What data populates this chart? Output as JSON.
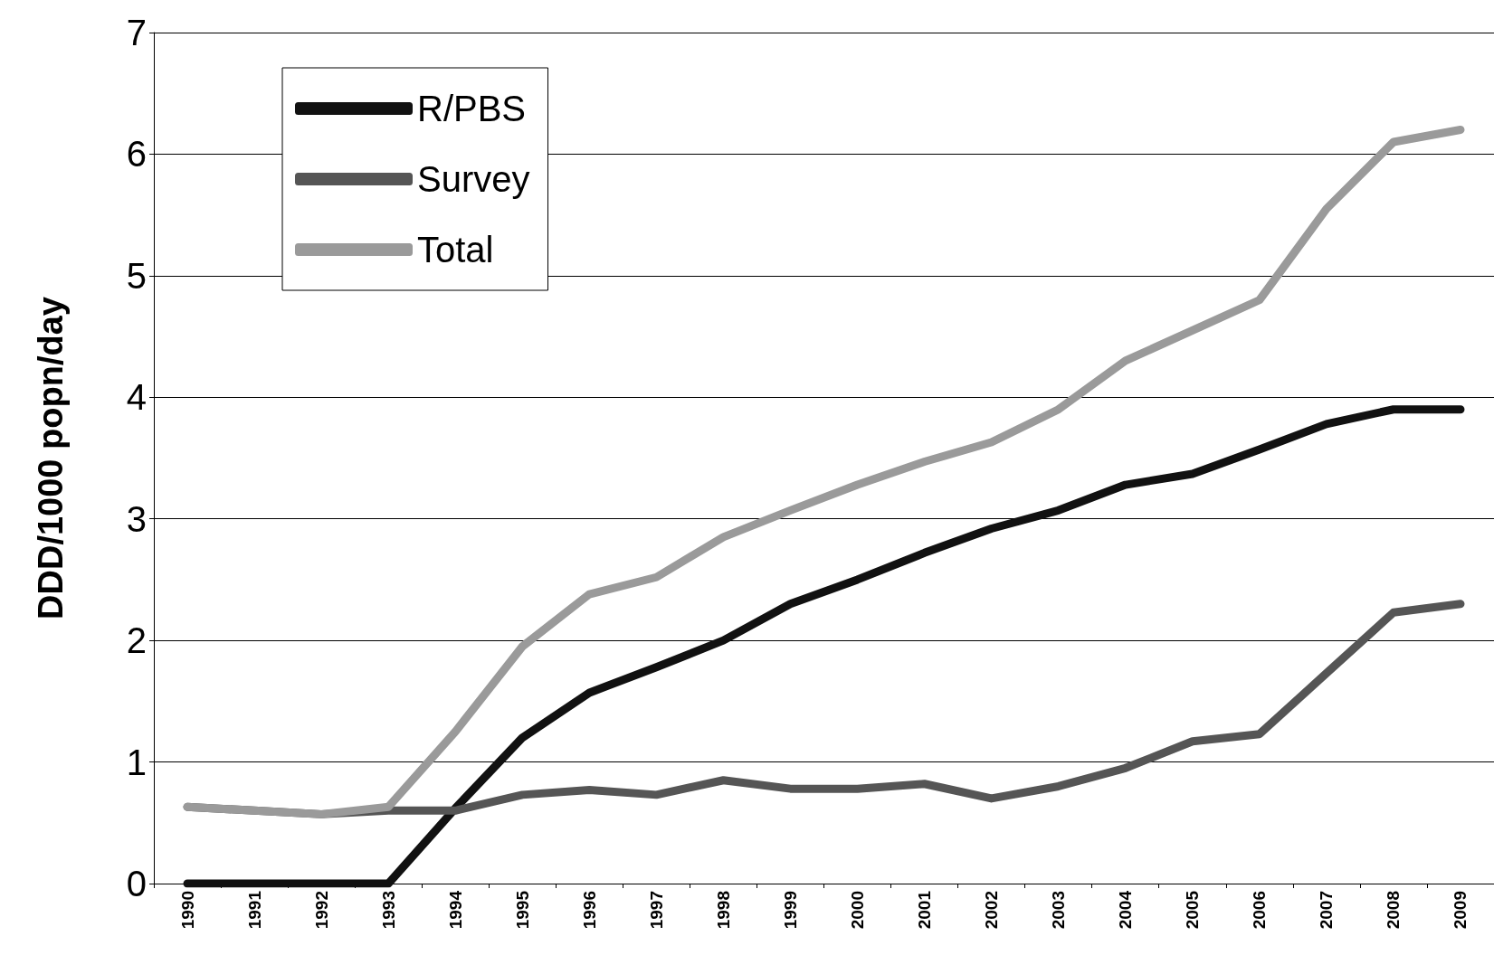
{
  "chart_data": {
    "type": "line",
    "ylabel": "DDD/1000 popn/day",
    "categories": [
      "1990",
      "1991",
      "1992",
      "1993",
      "1994",
      "1995",
      "1996",
      "1997",
      "1998",
      "1999",
      "2000",
      "2001",
      "2002",
      "2003",
      "2004",
      "2005",
      "2006",
      "2007",
      "2008",
      "2009"
    ],
    "series": [
      {
        "name": "R/PBS",
        "color": "#111111",
        "values": [
          0,
          0,
          0,
          0,
          0.62,
          1.2,
          1.57,
          1.78,
          2.0,
          2.3,
          2.5,
          2.72,
          2.92,
          3.07,
          3.28,
          3.37,
          3.57,
          3.78,
          3.9,
          3.9
        ]
      },
      {
        "name": "Survey",
        "color": "#555555",
        "values": [
          0.63,
          0.6,
          0.57,
          0.6,
          0.6,
          0.73,
          0.77,
          0.73,
          0.85,
          0.78,
          0.78,
          0.82,
          0.7,
          0.8,
          0.95,
          1.17,
          1.23,
          1.73,
          2.23,
          2.3
        ]
      },
      {
        "name": "Total",
        "color": "#9a9a9a",
        "values": [
          0.63,
          0.6,
          0.57,
          0.63,
          1.25,
          1.95,
          2.38,
          2.52,
          2.85,
          3.07,
          3.28,
          3.47,
          3.63,
          3.9,
          4.3,
          4.55,
          4.8,
          5.55,
          6.1,
          6.2
        ]
      }
    ],
    "ylim": [
      0,
      7
    ],
    "yticks": [
      0,
      1,
      2,
      3,
      4,
      5,
      6,
      7
    ],
    "grid": "y",
    "legend": "top left",
    "marker": "none",
    "line_style": "solid"
  }
}
